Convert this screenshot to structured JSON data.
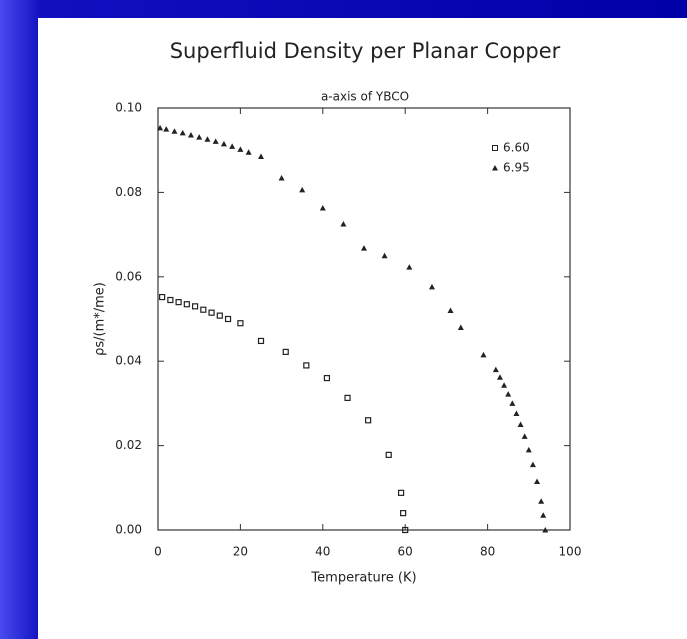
{
  "chart_data": {
    "type": "scatter",
    "title": "Superfluid Density per Planar Copper",
    "subtitle": "a-axis of YBCO",
    "x_label": "Temperature (K)",
    "y_label": "ρs/(m*/me)",
    "xlim": [
      0,
      100
    ],
    "xticks": [
      0,
      20,
      40,
      60,
      80,
      100
    ],
    "ylim": [
      0,
      0.1
    ],
    "yticks": [
      {
        "value": 0,
        "label": "0.00"
      },
      {
        "value": 0.02,
        "label": "0.02"
      },
      {
        "value": 0.04,
        "label": "0.04"
      },
      {
        "value": 0.06,
        "label": "0.06"
      },
      {
        "value": 0.08,
        "label": "0.08"
      },
      {
        "value": 0.1,
        "label": "0.10"
      }
    ],
    "legend": "upper right",
    "series": [
      {
        "name": "6.60",
        "color": "#222222",
        "marker": "square",
        "x": [
          1,
          3,
          5,
          7,
          9,
          11,
          13,
          15,
          17,
          20,
          25,
          31,
          36,
          41,
          46,
          51,
          56,
          59,
          59.5,
          60
        ],
        "values": [
          0.0552,
          0.0545,
          0.054,
          0.0535,
          0.053,
          0.0522,
          0.0515,
          0.0508,
          0.05,
          0.049,
          0.0448,
          0.0422,
          0.039,
          0.036,
          0.0313,
          0.026,
          0.0178,
          0.0088,
          0.004,
          0.0
        ]
      },
      {
        "name": "6.95",
        "color": "#222222",
        "marker": "triangle",
        "x": [
          0.5,
          2,
          4,
          6,
          8,
          10,
          12,
          14,
          16,
          18,
          20,
          22,
          25,
          30,
          35,
          40,
          45,
          50,
          55,
          61,
          66.5,
          71,
          73.5,
          79,
          82,
          83,
          84,
          85,
          86,
          87,
          88,
          89,
          90,
          91,
          92,
          93,
          93.5,
          94
        ],
        "values": [
          0.0953,
          0.095,
          0.0945,
          0.0941,
          0.0936,
          0.0931,
          0.0926,
          0.0921,
          0.0915,
          0.0909,
          0.0902,
          0.0895,
          0.0885,
          0.0834,
          0.0806,
          0.0763,
          0.0725,
          0.0668,
          0.065,
          0.0623,
          0.0576,
          0.052,
          0.048,
          0.0415,
          0.038,
          0.0362,
          0.0343,
          0.0322,
          0.03,
          0.0276,
          0.025,
          0.0222,
          0.019,
          0.0155,
          0.0115,
          0.0068,
          0.0035,
          0.0
        ]
      }
    ]
  }
}
